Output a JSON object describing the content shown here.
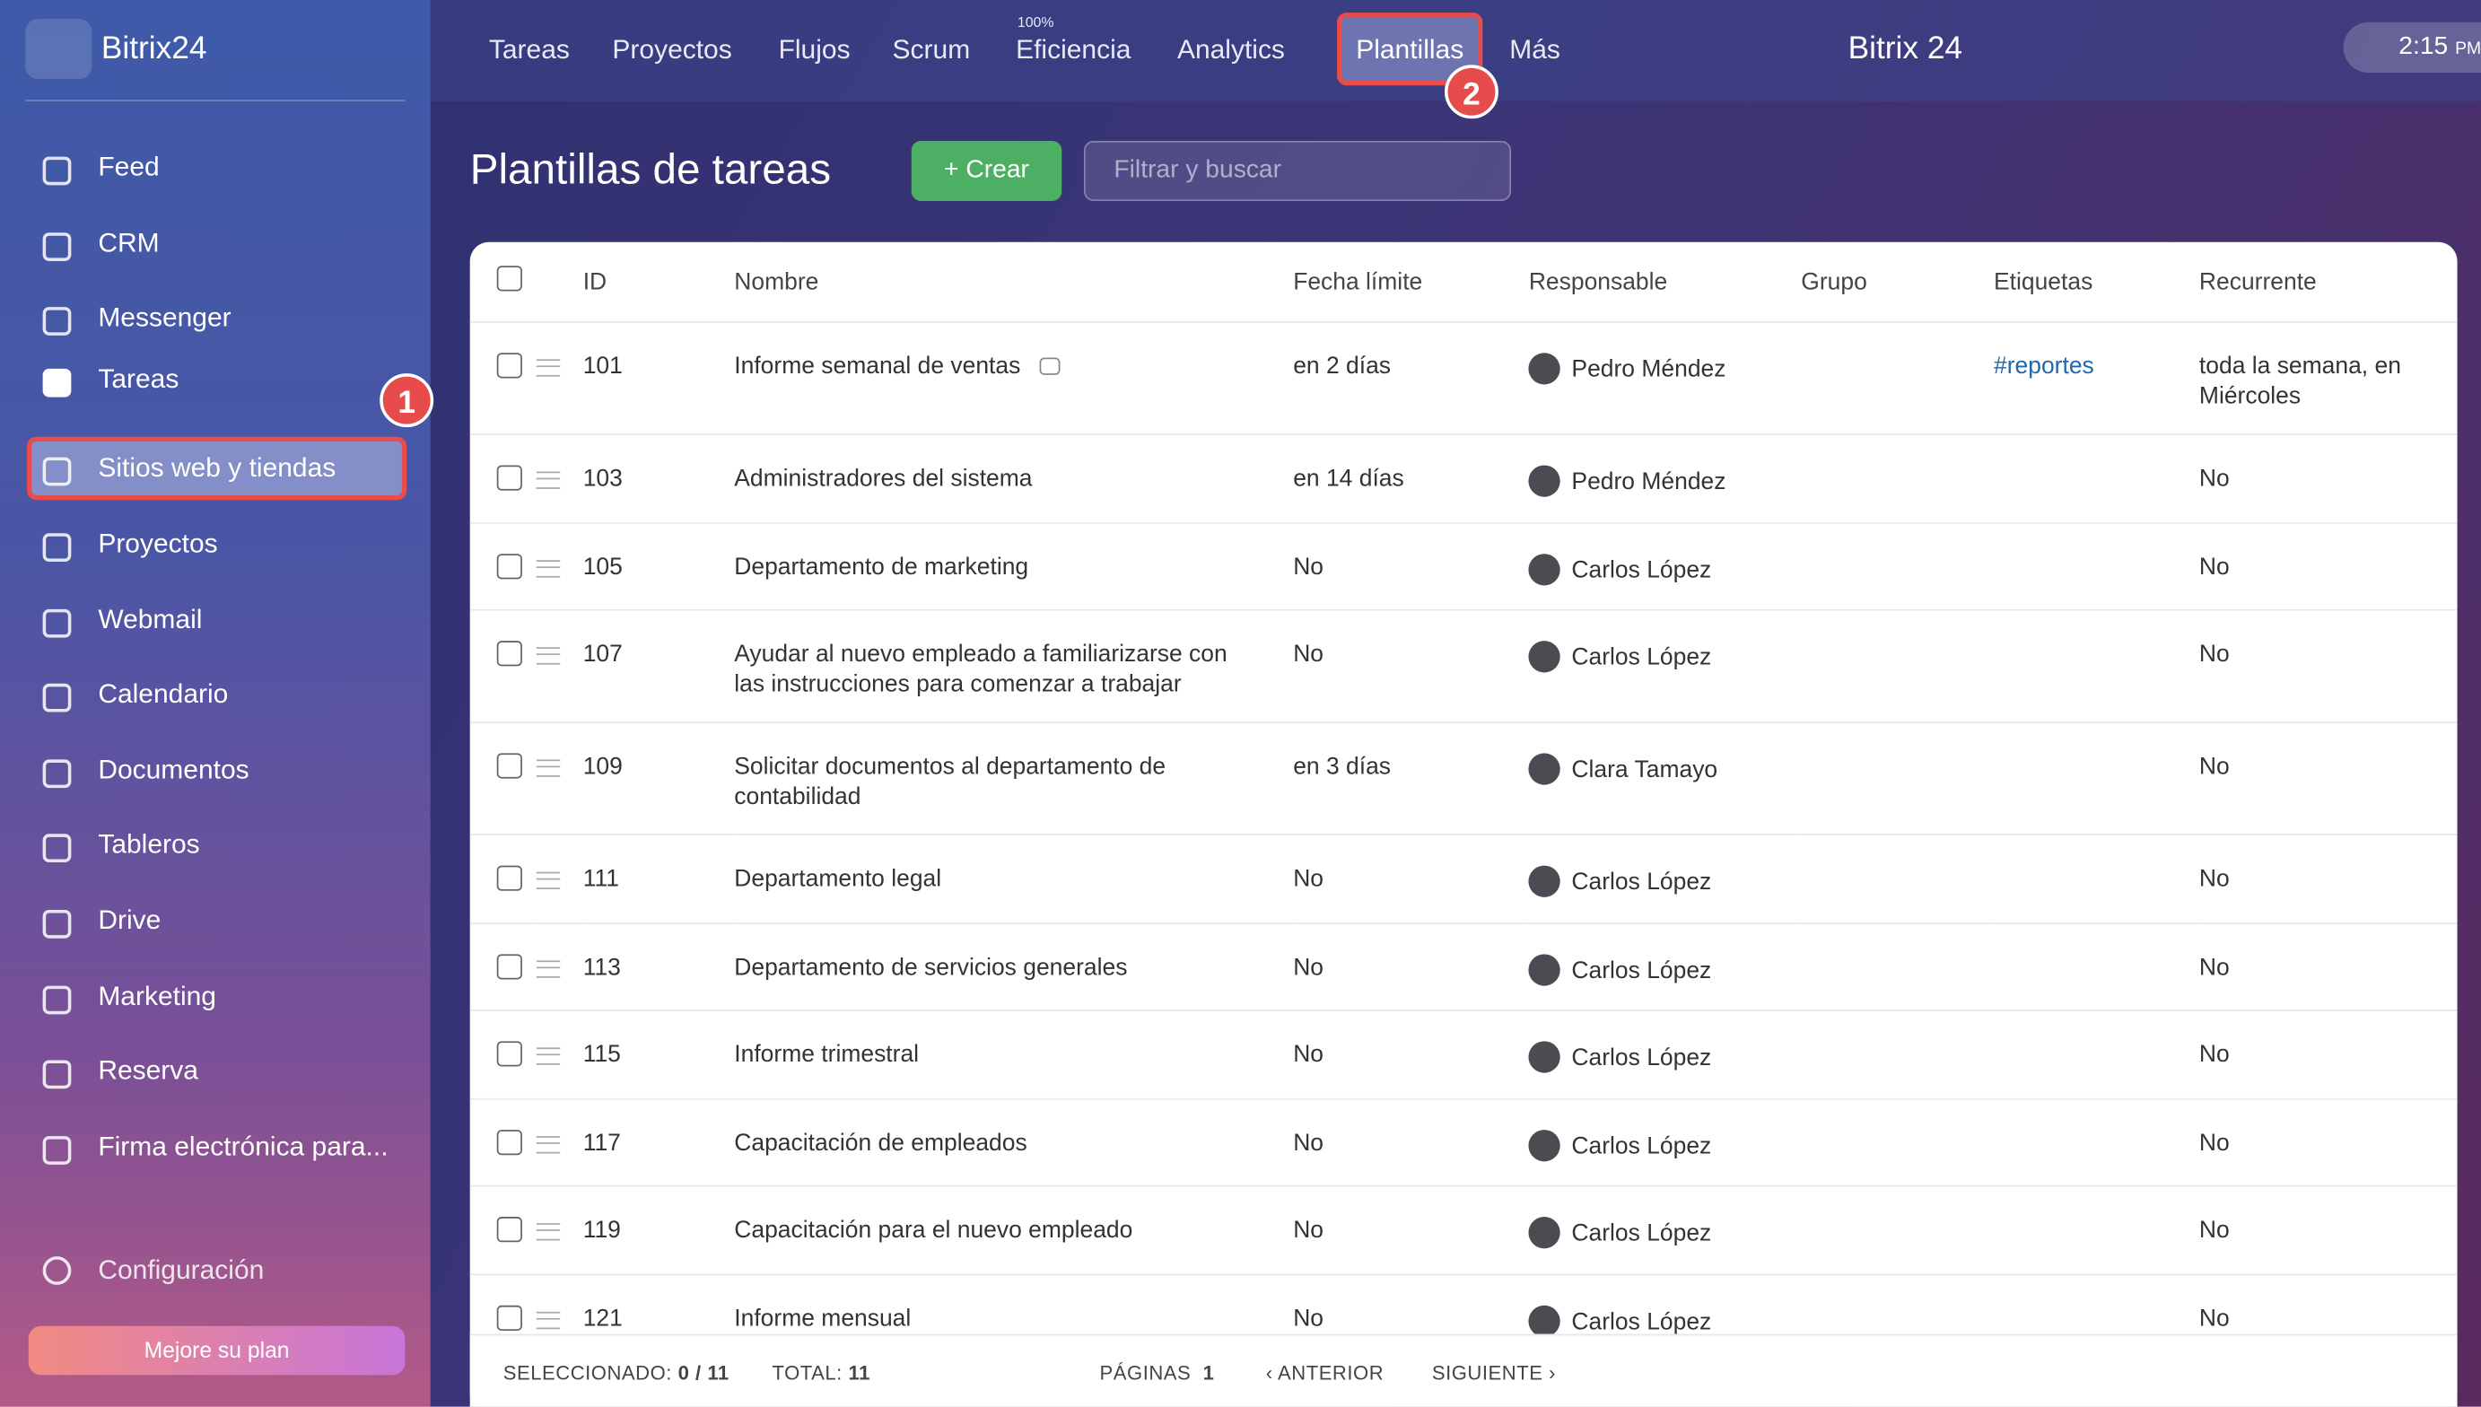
{
  "sidebar": {
    "logo": "Bitrix24",
    "items": [
      "Feed",
      "CRM",
      "Messenger",
      "Tareas",
      "Sitios web y tiendas",
      "Proyectos",
      "Webmail",
      "Calendario",
      "Documentos",
      "Tableros",
      "Drive",
      "Marketing",
      "Reserva",
      "Firma electrónica para..."
    ],
    "settings": "Configuración",
    "upgrade": "Mejore su plan",
    "badge": "1"
  },
  "topnav": {
    "items": [
      "Tareas",
      "Proyectos",
      "Flujos",
      "Scrum",
      "Eficiencia",
      "Analytics",
      "Plantillas",
      "Más"
    ],
    "efficiency_note": "100%",
    "badge": "2",
    "brand": "Bitrix 24",
    "time": "2:15",
    "time_suffix": "PM"
  },
  "header": {
    "title": "Plantillas de tareas",
    "create": "Crear",
    "search_placeholder": "Filtrar y buscar"
  },
  "table": {
    "columns": [
      "ID",
      "Nombre",
      "Fecha límite",
      "Responsable",
      "Grupo",
      "Etiquetas",
      "Recurrente"
    ],
    "rows": [
      [
        "101",
        "Informe semanal de ventas",
        "en 2 días",
        "Pedro Méndez",
        "",
        "#reportes",
        "toda la semana, en Miércoles"
      ],
      [
        "103",
        "Administradores del sistema",
        "en 14 días",
        "Pedro Méndez",
        "",
        "",
        "No"
      ],
      [
        "105",
        "Departamento de marketing",
        "No",
        "Carlos López",
        "",
        "",
        "No"
      ],
      [
        "107",
        "Ayudar al nuevo empleado a familiarizarse con las instrucciones para comenzar a trabajar",
        "No",
        "Carlos López",
        "",
        "",
        "No"
      ],
      [
        "109",
        "Solicitar documentos al departamento de contabilidad",
        "en 3 días",
        "Clara Tamayo",
        "",
        "",
        "No"
      ],
      [
        "111",
        "Departamento legal",
        "No",
        "Carlos López",
        "",
        "",
        "No"
      ],
      [
        "113",
        "Departamento de servicios generales",
        "No",
        "Carlos López",
        "",
        "",
        "No"
      ],
      [
        "115",
        "Informe trimestral",
        "No",
        "Carlos López",
        "",
        "",
        "No"
      ],
      [
        "117",
        "Capacitación de empleados",
        "No",
        "Carlos López",
        "",
        "",
        "No"
      ],
      [
        "119",
        "Capacitación para el nuevo empleado",
        "No",
        "Carlos López",
        "",
        "",
        "No"
      ],
      [
        "121",
        "Informe mensual",
        "No",
        "Carlos López",
        "",
        "",
        "No"
      ]
    ]
  },
  "footer": {
    "selected_label": "SELECCIONADO:",
    "selected": "0 / 11",
    "total_label": "TOTAL:",
    "total": "11",
    "pages_label": "PÁGINAS",
    "pages": "1",
    "prev": "ANTERIOR",
    "next": "SIGUIENTE"
  }
}
